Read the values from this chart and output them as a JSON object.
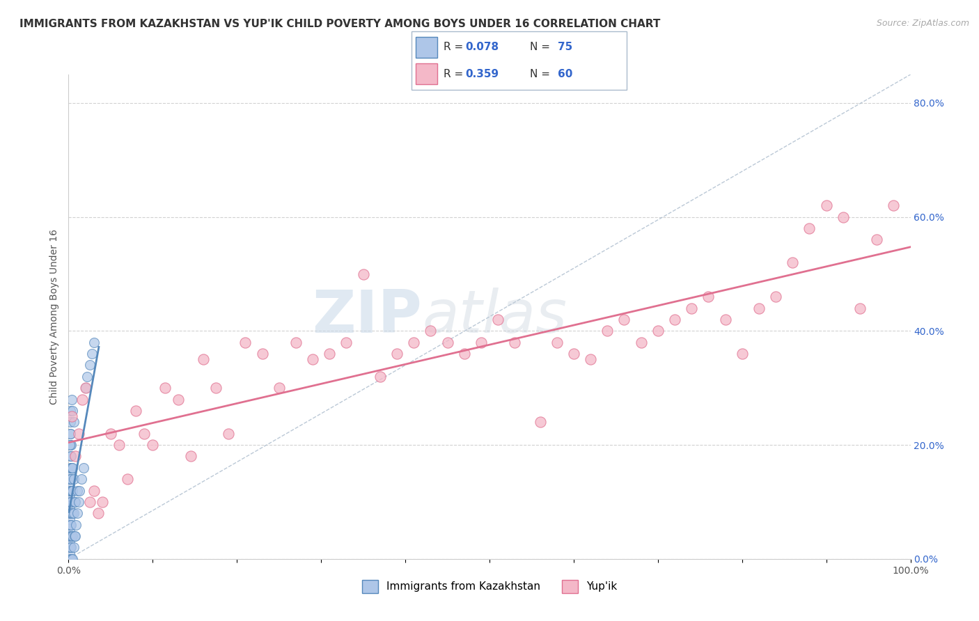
{
  "title": "IMMIGRANTS FROM KAZAKHSTAN VS YUP'IK CHILD POVERTY AMONG BOYS UNDER 16 CORRELATION CHART",
  "source": "Source: ZipAtlas.com",
  "ylabel": "Child Poverty Among Boys Under 16",
  "background_color": "#ffffff",
  "plot_bg_color": "#ffffff",
  "grid_color": "#cccccc",
  "r1": 0.078,
  "n1": 75,
  "r2": 0.359,
  "n2": 60,
  "series1_color": "#aec6e8",
  "series1_edge": "#5588bb",
  "series2_color": "#f4b8c8",
  "series2_edge": "#e07090",
  "trend1_color": "#5588bb",
  "trend2_color": "#e07090",
  "diag_color": "#aabbcc",
  "legend_label1": "Immigrants from Kazakhstan",
  "legend_label2": "Yup'ik",
  "xmin": 0.0,
  "xmax": 1.0,
  "ymin": 0.0,
  "ymax": 0.85,
  "scatter1_x": [
    0.001,
    0.001,
    0.001,
    0.001,
    0.001,
    0.001,
    0.001,
    0.001,
    0.001,
    0.001,
    0.001,
    0.001,
    0.001,
    0.001,
    0.001,
    0.001,
    0.002,
    0.002,
    0.002,
    0.002,
    0.002,
    0.002,
    0.002,
    0.002,
    0.002,
    0.002,
    0.002,
    0.002,
    0.002,
    0.002,
    0.003,
    0.003,
    0.003,
    0.003,
    0.003,
    0.003,
    0.003,
    0.003,
    0.003,
    0.003,
    0.004,
    0.004,
    0.004,
    0.004,
    0.004,
    0.005,
    0.005,
    0.005,
    0.005,
    0.005,
    0.006,
    0.006,
    0.006,
    0.007,
    0.007,
    0.008,
    0.008,
    0.009,
    0.01,
    0.01,
    0.012,
    0.013,
    0.015,
    0.018,
    0.02,
    0.022,
    0.025,
    0.028,
    0.03,
    0.002,
    0.003,
    0.004,
    0.005,
    0.006,
    0.001
  ],
  "scatter1_y": [
    0.0,
    0.01,
    0.02,
    0.03,
    0.04,
    0.05,
    0.06,
    0.07,
    0.08,
    0.09,
    0.1,
    0.11,
    0.12,
    0.13,
    0.14,
    0.15,
    0.0,
    0.02,
    0.04,
    0.06,
    0.08,
    0.1,
    0.12,
    0.14,
    0.16,
    0.18,
    0.2,
    0.22,
    0.24,
    0.26,
    0.0,
    0.02,
    0.04,
    0.06,
    0.08,
    0.1,
    0.12,
    0.14,
    0.16,
    0.18,
    0.0,
    0.04,
    0.08,
    0.12,
    0.16,
    0.0,
    0.04,
    0.08,
    0.12,
    0.16,
    0.02,
    0.08,
    0.14,
    0.04,
    0.1,
    0.04,
    0.1,
    0.06,
    0.08,
    0.12,
    0.1,
    0.12,
    0.14,
    0.16,
    0.3,
    0.32,
    0.34,
    0.36,
    0.38,
    0.22,
    0.2,
    0.28,
    0.26,
    0.24,
    0.2
  ],
  "scatter2_x": [
    0.004,
    0.008,
    0.012,
    0.016,
    0.02,
    0.025,
    0.03,
    0.035,
    0.04,
    0.05,
    0.06,
    0.07,
    0.08,
    0.09,
    0.1,
    0.115,
    0.13,
    0.145,
    0.16,
    0.175,
    0.19,
    0.21,
    0.23,
    0.25,
    0.27,
    0.29,
    0.31,
    0.33,
    0.35,
    0.37,
    0.39,
    0.41,
    0.43,
    0.45,
    0.47,
    0.49,
    0.51,
    0.53,
    0.56,
    0.58,
    0.6,
    0.62,
    0.64,
    0.66,
    0.68,
    0.7,
    0.72,
    0.74,
    0.76,
    0.78,
    0.8,
    0.82,
    0.84,
    0.86,
    0.88,
    0.9,
    0.92,
    0.94,
    0.96,
    0.98
  ],
  "scatter2_y": [
    0.25,
    0.18,
    0.22,
    0.28,
    0.3,
    0.1,
    0.12,
    0.08,
    0.1,
    0.22,
    0.2,
    0.14,
    0.26,
    0.22,
    0.2,
    0.3,
    0.28,
    0.18,
    0.35,
    0.3,
    0.22,
    0.38,
    0.36,
    0.3,
    0.38,
    0.35,
    0.36,
    0.38,
    0.5,
    0.32,
    0.36,
    0.38,
    0.4,
    0.38,
    0.36,
    0.38,
    0.42,
    0.38,
    0.24,
    0.38,
    0.36,
    0.35,
    0.4,
    0.42,
    0.38,
    0.4,
    0.42,
    0.44,
    0.46,
    0.42,
    0.36,
    0.44,
    0.46,
    0.52,
    0.58,
    0.62,
    0.6,
    0.44,
    0.56,
    0.62
  ],
  "ytick_labels": [
    "0.0%",
    "20.0%",
    "40.0%",
    "60.0%",
    "80.0%"
  ],
  "ytick_values": [
    0.0,
    0.2,
    0.4,
    0.6,
    0.8
  ],
  "xtick_labels": [
    "0.0%",
    "",
    "",
    "",
    "",
    "",
    "",
    "",
    "",
    "",
    "100.0%"
  ],
  "xtick_values": [
    0.0,
    0.1,
    0.2,
    0.3,
    0.4,
    0.5,
    0.6,
    0.7,
    0.8,
    0.9,
    1.0
  ],
  "watermark_zip": "ZIP",
  "watermark_atlas": "atlas",
  "title_fontsize": 11,
  "label_fontsize": 10,
  "tick_fontsize": 10,
  "legend_text_color": "#333333",
  "legend_num_color": "#3366cc"
}
